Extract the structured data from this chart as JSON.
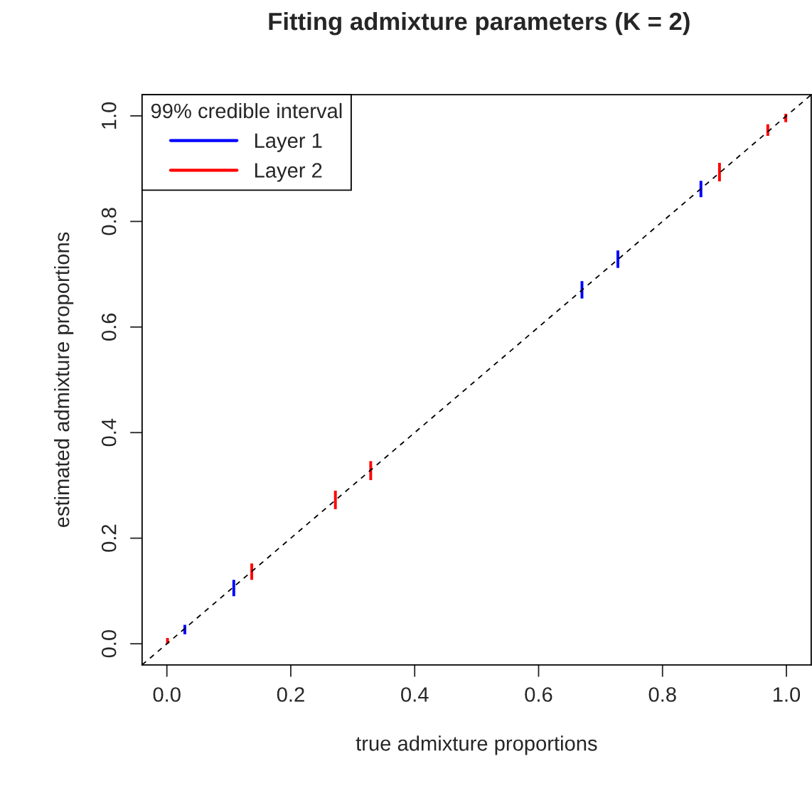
{
  "chart_data": {
    "type": "bar",
    "title": "Fitting admixture parameters (K = 2)",
    "xlabel": "true admixture proportions",
    "ylabel": "estimated admixture proportions",
    "legend_title": "99% credible interval",
    "legend": "top left",
    "grid": false,
    "xlim": [
      -0.04,
      1.04
    ],
    "ylim": [
      -0.04,
      1.04
    ],
    "xticks": [
      {
        "value": 0,
        "label": "0.0"
      },
      {
        "value": 0.2,
        "label": "0.2"
      },
      {
        "value": 0.4,
        "label": "0.4"
      },
      {
        "value": 0.6,
        "label": "0.6"
      },
      {
        "value": 0.8,
        "label": "0.8"
      },
      {
        "value": 1,
        "label": "1.0"
      }
    ],
    "yticks": [
      {
        "value": 0,
        "label": "0.0"
      },
      {
        "value": 0.2,
        "label": "0.2"
      },
      {
        "value": 0.4,
        "label": "0.4"
      },
      {
        "value": 0.6,
        "label": "0.6"
      },
      {
        "value": 0.8,
        "label": "0.8"
      },
      {
        "value": 1,
        "label": "1.0"
      }
    ],
    "series": [
      {
        "name": "Layer 1",
        "color": "#0000ff",
        "x": [
          0.029,
          0.108,
          0.67,
          0.728,
          0.862
        ],
        "base": [
          0.018,
          0.09,
          0.654,
          0.712,
          0.846
        ],
        "values": [
          0.018,
          0.031,
          0.033,
          0.033,
          0.031
        ]
      },
      {
        "name": "Layer 2",
        "color": "#ff0000",
        "x": [
          0.001,
          0.137,
          0.272,
          0.329,
          0.892,
          0.97,
          0.999
        ],
        "base": [
          0.0,
          0.121,
          0.255,
          0.31,
          0.876,
          0.962,
          0.988
        ],
        "values": [
          0.011,
          0.031,
          0.035,
          0.036,
          0.035,
          0.022,
          0.016
        ]
      },
      {
        "type": "line",
        "color": "#000000",
        "line_style": "dashed",
        "x": [
          -0.04,
          1.04
        ],
        "values": [
          -0.04,
          1.04
        ]
      }
    ]
  }
}
